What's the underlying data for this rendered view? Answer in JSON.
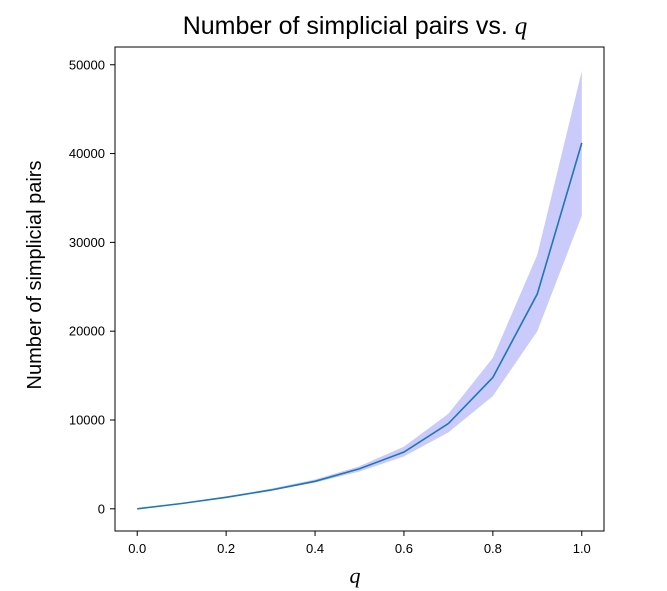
{
  "chart_data": {
    "type": "line",
    "title": "Number of simplicial pairs vs.",
    "title_variable": "q",
    "xlabel": "q",
    "ylabel": "Number of simplicial pairs",
    "xlim": [
      -0.05,
      1.05
    ],
    "ylim": [
      -2500,
      52000
    ],
    "xticks": [
      0.0,
      0.2,
      0.4,
      0.6,
      0.8,
      1.0
    ],
    "xtick_labels": [
      "0.0",
      "0.2",
      "0.4",
      "0.6",
      "0.8",
      "1.0"
    ],
    "yticks": [
      0,
      10000,
      20000,
      30000,
      40000,
      50000
    ],
    "ytick_labels": [
      "0",
      "10000",
      "20000",
      "30000",
      "40000",
      "50000"
    ],
    "grid": false,
    "series": [
      {
        "x": [
          0.0,
          0.1,
          0.2,
          0.3,
          0.4,
          0.5,
          0.6,
          0.7,
          0.8,
          0.9,
          1.0
        ],
        "values": [
          0,
          600,
          1300,
          2100,
          3100,
          4500,
          6400,
          9600,
          14800,
          24200,
          41200
        ],
        "lower": [
          0,
          550,
          1200,
          2000,
          2950,
          4200,
          5900,
          8600,
          12700,
          20000,
          33000
        ],
        "upper": [
          0,
          650,
          1400,
          2250,
          3300,
          4800,
          7000,
          10700,
          17000,
          28600,
          49300
        ],
        "color": "#1f77b4",
        "band_color": "#7b7bf5"
      }
    ]
  }
}
